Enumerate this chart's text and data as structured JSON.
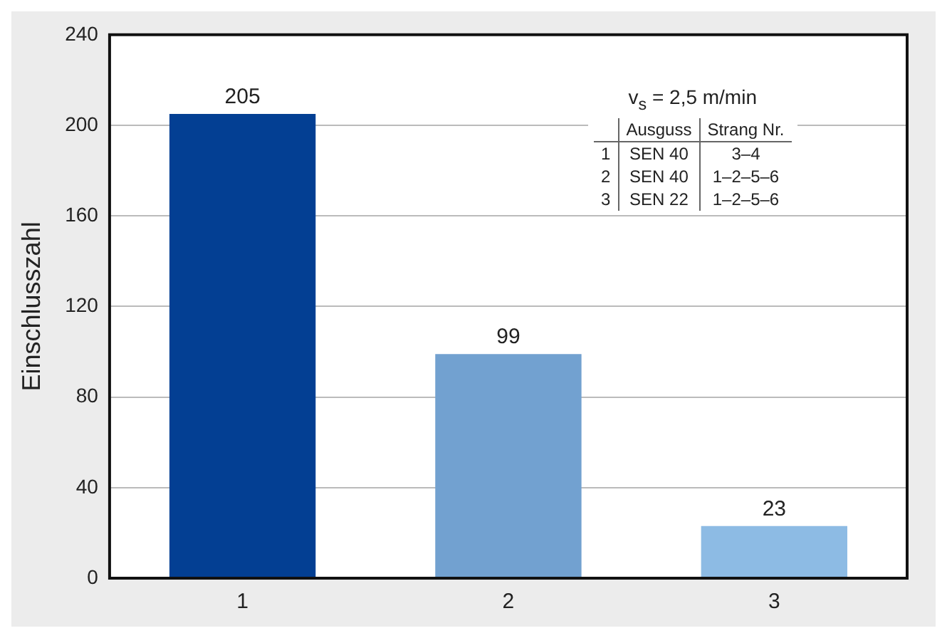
{
  "chart_data": {
    "type": "bar",
    "ylabel": "Einschlusszahl",
    "categories": [
      "1",
      "2",
      "3"
    ],
    "values": [
      205,
      99,
      23
    ],
    "colors": [
      "#033f93",
      "#72a1d0",
      "#8dbbe4"
    ],
    "ylim": [
      0,
      240
    ],
    "yticks": [
      0,
      40,
      80,
      120,
      160,
      200,
      240
    ],
    "grid": "y",
    "data_labels": true,
    "annotations": [
      "v$_{s}$ = 2,5 m/min",
      "Ausguss",
      "Strang Nr.",
      "1",
      "SEN 40",
      "3–4",
      "2",
      "SEN 40",
      "1–2–5–6",
      "3",
      "SEN 22",
      "1–2–5–6"
    ]
  }
}
